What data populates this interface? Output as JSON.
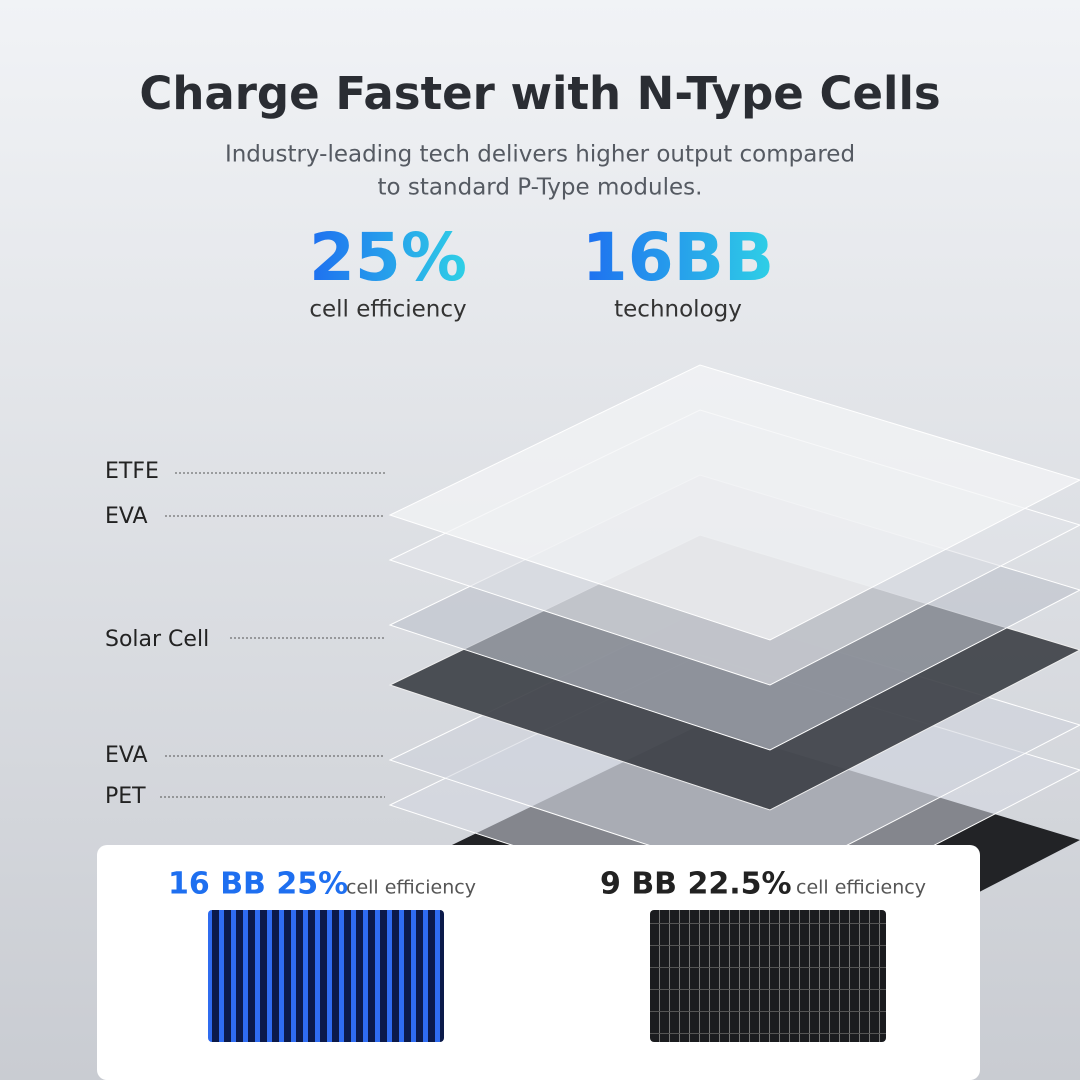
{
  "header": {
    "title": "Charge Faster with N-Type Cells",
    "subtitle": [
      "Industry-leading tech delivers higher output compared",
      "to standard P-Type modules."
    ]
  },
  "stats": [
    {
      "value": "25%",
      "label": "cell efficiency"
    },
    {
      "value": "16BB",
      "label": "technology"
    }
  ],
  "layers": [
    "ETFE",
    "EVA",
    "Solar Cell",
    "EVA",
    "PET"
  ],
  "comparison": [
    {
      "highlight": "16 BB 25%",
      "label": "cell efficiency"
    },
    {
      "highlight": "9 BB 22.5%",
      "label": "cell efficiency"
    }
  ]
}
